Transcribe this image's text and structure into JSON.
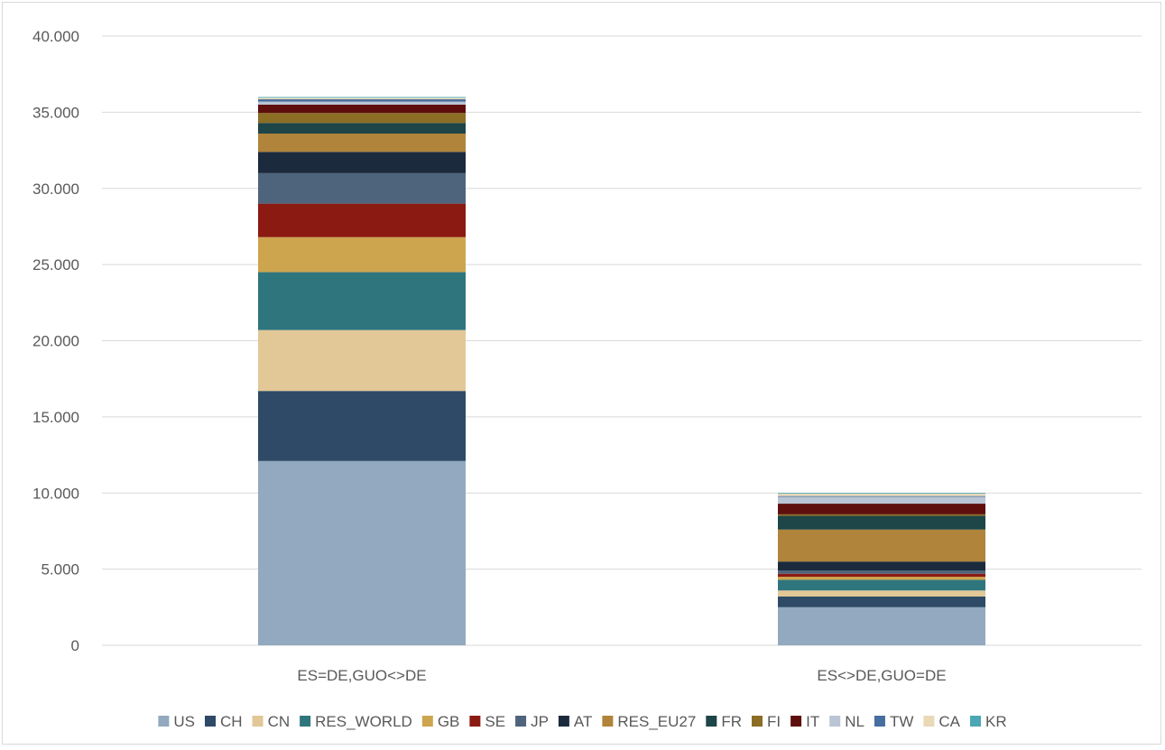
{
  "chart_data": {
    "type": "bar",
    "stacked": true,
    "categories": [
      "ES=DE,GUO<>DE",
      "ES<>DE,GUO=DE"
    ],
    "y_ticks": [
      "0",
      "5.000",
      "10.000",
      "15.000",
      "20.000",
      "25.000",
      "30.000",
      "35.000",
      "40.000"
    ],
    "ylim": [
      0,
      40000
    ],
    "grid": true,
    "legend_position": "bottom",
    "series": [
      {
        "name": "US",
        "color": "#93a9bf",
        "values": [
          12100,
          2500
        ]
      },
      {
        "name": "CH",
        "color": "#2e4a67",
        "values": [
          4600,
          700
        ]
      },
      {
        "name": "CN",
        "color": "#e2c797",
        "values": [
          4000,
          400
        ]
      },
      {
        "name": "RES_WORLD",
        "color": "#2f757e",
        "values": [
          3800,
          700
        ]
      },
      {
        "name": "GB",
        "color": "#cda54e",
        "values": [
          2300,
          200
        ]
      },
      {
        "name": "SE",
        "color": "#8b1a12",
        "values": [
          2200,
          200
        ]
      },
      {
        "name": "JP",
        "color": "#4e647c",
        "values": [
          2000,
          200
        ]
      },
      {
        "name": "AT",
        "color": "#1c2a3d",
        "values": [
          1400,
          600
        ]
      },
      {
        "name": "RES_EU27",
        "color": "#b0843a",
        "values": [
          1200,
          2100
        ]
      },
      {
        "name": "FR",
        "color": "#1e4547",
        "values": [
          700,
          900
        ]
      },
      {
        "name": "FI",
        "color": "#8b6d24",
        "values": [
          650,
          100
        ]
      },
      {
        "name": "IT",
        "color": "#5e0f0d",
        "values": [
          550,
          700
        ]
      },
      {
        "name": "NL",
        "color": "#b9c4d4",
        "values": [
          200,
          450
        ]
      },
      {
        "name": "TW",
        "color": "#466e9e",
        "values": [
          150,
          50
        ]
      },
      {
        "name": "CA",
        "color": "#ead9b7",
        "values": [
          100,
          150
        ]
      },
      {
        "name": "KR",
        "color": "#4ba7b3",
        "values": [
          50,
          50
        ]
      }
    ]
  }
}
